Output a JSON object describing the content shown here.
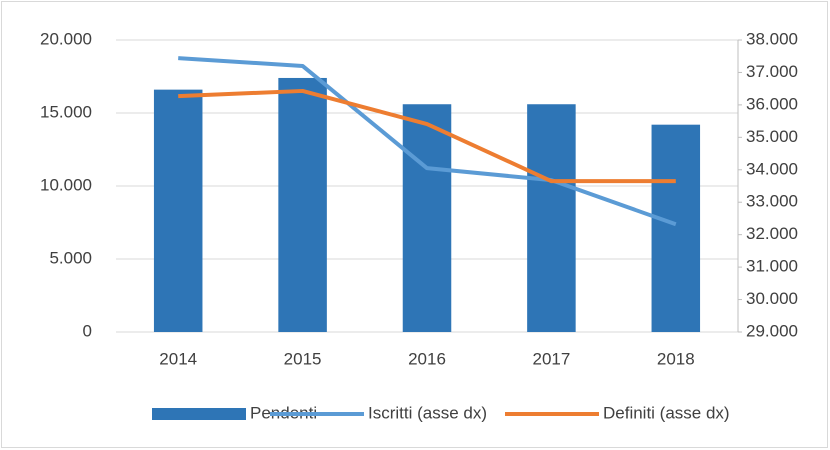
{
  "chart_data": {
    "type": "bar",
    "categories": [
      "2014",
      "2015",
      "2016",
      "2017",
      "2018"
    ],
    "series": [
      {
        "name": "Pendenti",
        "type": "bar",
        "color": "#2e75b6",
        "values": [
          16600,
          17400,
          15600,
          15600,
          14200
        ]
      },
      {
        "name": "Iscritti (asse dx)",
        "type": "line",
        "axis": "y2",
        "color": "#5b9bd5",
        "values": [
          37440,
          37200,
          34050,
          33680,
          32320
        ]
      },
      {
        "name": "Definiti (asse dx)",
        "type": "line",
        "axis": "y2",
        "color": "#ed7d31",
        "values": [
          36270,
          36430,
          35410,
          33650,
          33650
        ]
      }
    ],
    "ylim": [
      0,
      20000
    ],
    "yticks": [
      {
        "value": 0,
        "label": "0"
      },
      {
        "value": 5000,
        "label": "5.000"
      },
      {
        "value": 10000,
        "label": "10.000"
      },
      {
        "value": 15000,
        "label": "15.000"
      },
      {
        "value": 20000,
        "label": "20.000"
      }
    ],
    "y2lim": [
      29000,
      38000
    ],
    "y2ticks": [
      {
        "value": 29000,
        "label": "29.000"
      },
      {
        "value": 30000,
        "label": "30.000"
      },
      {
        "value": 31000,
        "label": "31.000"
      },
      {
        "value": 32000,
        "label": "32.000"
      },
      {
        "value": 33000,
        "label": "33.000"
      },
      {
        "value": 34000,
        "label": "34.000"
      },
      {
        "value": 35000,
        "label": "35.000"
      },
      {
        "value": 36000,
        "label": "36.000"
      },
      {
        "value": 37000,
        "label": "37.000"
      },
      {
        "value": 38000,
        "label": "38.000"
      }
    ],
    "grid": true,
    "legend": "bottom"
  }
}
